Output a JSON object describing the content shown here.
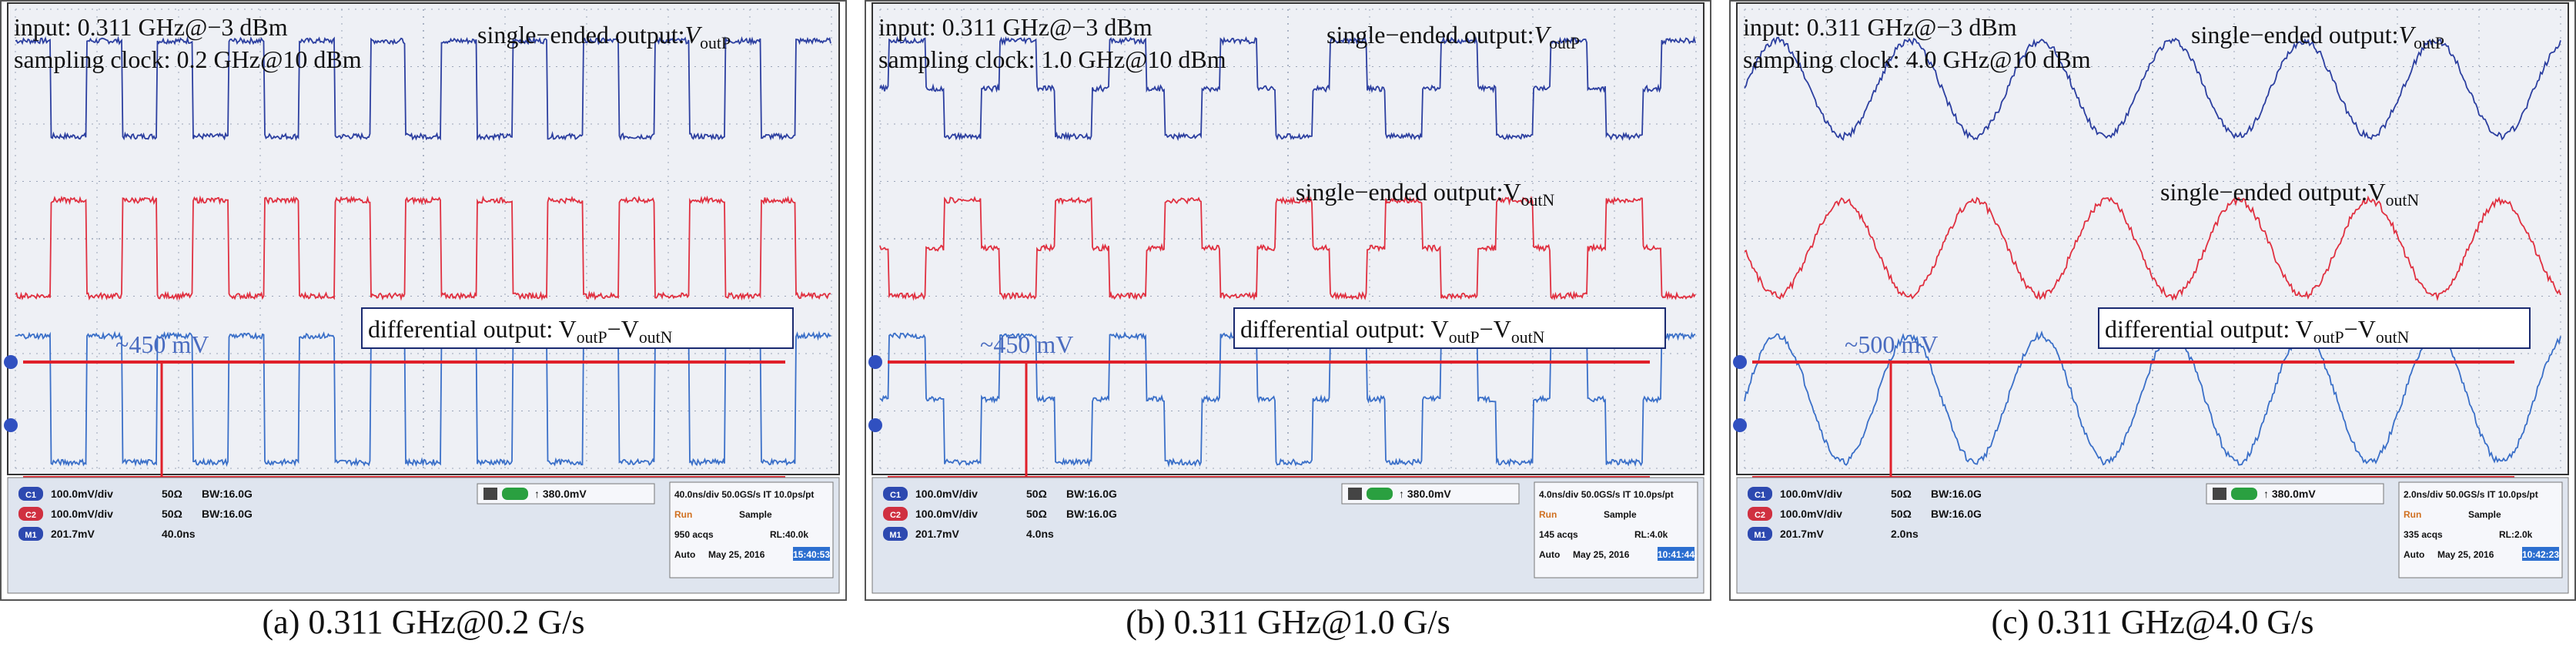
{
  "chart_data": [
    {
      "type": "line",
      "panel_caption": "(a) 0.311 GHz@0.2 G/s",
      "annotations": {
        "input": "input: 0.311 GHz@−3 dBm",
        "clock": "sampling clock: 0.2 GHz@10 dBm",
        "outp": "single−ended output:",
        "outp_sym": "V",
        "outp_sub": "outP",
        "outn": "",
        "outn_sym": "",
        "outn_sub": "",
        "diff_pre": "differential output: V",
        "diff_sub1": "outP",
        "diff_mid": "−V",
        "diff_sub2": "outN",
        "amplitude": "~450 mV"
      },
      "signal": {
        "input_freq_ghz": 0.311,
        "sampling_rate_gsps": 0.2,
        "waveform": "square",
        "amplitude_mv": 450
      },
      "scope": {
        "ch1": "100.0mV/div",
        "ch1_imp": "50Ω",
        "ch1_bw": "16.0G",
        "ch1_bw_label": "BW",
        "ch2": "100.0mV/div",
        "ch2_imp": "50Ω",
        "ch2_bw": "16.0G",
        "ch2_bw_label": "BW",
        "m1": "201.7mV",
        "m1_time": "40.0ns",
        "trigger": "380.0mV",
        "timebase": "40.0ns/div",
        "sample_rate": "50.0GS/s",
        "mode": "IT",
        "resolution": "10.0ps/pt",
        "run": "Run",
        "acq_mode": "Sample",
        "acqs": "950 acqs",
        "rl": "RL:40.0k",
        "trigger_mode": "Auto",
        "date": "May 25, 2016",
        "time": "15:40:53"
      }
    },
    {
      "type": "line",
      "panel_caption": "(b) 0.311 GHz@1.0 G/s",
      "annotations": {
        "input": "input: 0.311 GHz@−3 dBm",
        "clock": "sampling clock: 1.0 GHz@10 dBm",
        "outp": "single−ended output:",
        "outp_sym": "V",
        "outp_sub": "outP",
        "outn": "single−ended output:",
        "outn_sym": "V",
        "outn_sub": "outN",
        "diff_pre": "differential output: V",
        "diff_sub1": "outP",
        "diff_mid": "−V",
        "diff_sub2": "outN",
        "amplitude": "~450 mV"
      },
      "signal": {
        "input_freq_ghz": 0.311,
        "sampling_rate_gsps": 1.0,
        "waveform": "stepped",
        "amplitude_mv": 450
      },
      "scope": {
        "ch1": "100.0mV/div",
        "ch1_imp": "50Ω",
        "ch1_bw": "16.0G",
        "ch1_bw_label": "BW",
        "ch2": "100.0mV/div",
        "ch2_imp": "50Ω",
        "ch2_bw": "16.0G",
        "ch2_bw_label": "BW",
        "m1": "201.7mV",
        "m1_time": "4.0ns",
        "trigger": "380.0mV",
        "timebase": "4.0ns/div",
        "sample_rate": "50.0GS/s",
        "mode": "IT",
        "resolution": "10.0ps/pt",
        "run": "Run",
        "acq_mode": "Sample",
        "acqs": "145 acqs",
        "rl": "RL:4.0k",
        "trigger_mode": "Auto",
        "date": "May 25, 2016",
        "time": "10:41:44"
      }
    },
    {
      "type": "line",
      "panel_caption": "(c) 0.311 GHz@4.0 G/s",
      "annotations": {
        "input": "input: 0.311 GHz@−3 dBm",
        "clock": "sampling clock: 4.0 GHz@10 dBm",
        "outp": "single−ended output:",
        "outp_sym": "V",
        "outp_sub": "outP",
        "outn": "single−ended output:",
        "outn_sym": "V",
        "outn_sub": "outN",
        "diff_pre": "differential output: V",
        "diff_sub1": "outP",
        "diff_mid": "−V",
        "diff_sub2": "outN",
        "amplitude": "~500 mV"
      },
      "signal": {
        "input_freq_ghz": 0.311,
        "sampling_rate_gsps": 4.0,
        "waveform": "sine",
        "amplitude_mv": 500
      },
      "scope": {
        "ch1": "100.0mV/div",
        "ch1_imp": "50Ω",
        "ch1_bw": "16.0G",
        "ch1_bw_label": "BW",
        "ch2": "100.0mV/div",
        "ch2_imp": "50Ω",
        "ch2_bw": "16.0G",
        "ch2_bw_label": "BW",
        "m1": "201.7mV",
        "m1_time": "2.0ns",
        "trigger": "380.0mV",
        "timebase": "2.0ns/div",
        "sample_rate": "50.0GS/s",
        "mode": "IT",
        "resolution": "10.0ps/pt",
        "run": "Run",
        "acq_mode": "Sample",
        "acqs": "335 acqs",
        "rl": "RL:2.0k",
        "trigger_mode": "Auto",
        "date": "May 25, 2016",
        "time": "10:42:23"
      }
    }
  ],
  "colors": {
    "screen_bg": "#eef0f5",
    "grid": "#9aa4b8",
    "ch1_blue": "#2c3fa0",
    "ch2_red": "#e03040",
    "math_blue": "#3a6fc8",
    "marker_red": "#e0202a",
    "label_blue": "#4a6cc0",
    "status_bg": "#dfe5ef"
  }
}
